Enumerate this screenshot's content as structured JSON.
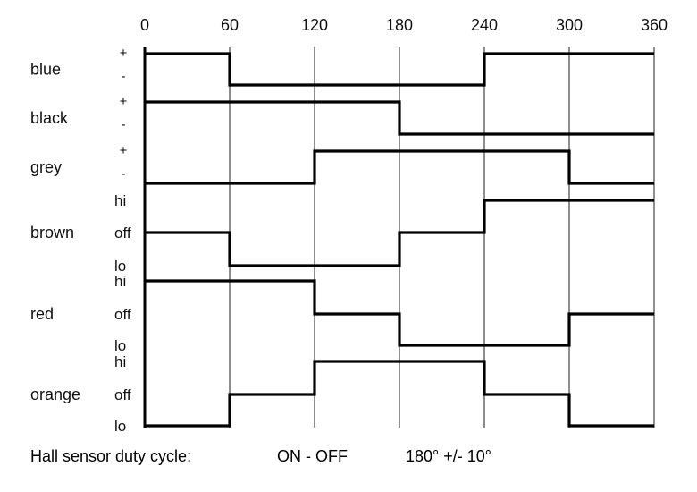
{
  "angles": [
    "0",
    "60",
    "120",
    "180",
    "240",
    "300",
    "360"
  ],
  "signals": [
    {
      "name": "blue",
      "kind": "binary",
      "levels": [
        "+",
        "-"
      ],
      "states": [
        "+",
        "-",
        "-",
        "-",
        "+",
        "+"
      ]
    },
    {
      "name": "black",
      "kind": "binary",
      "levels": [
        "+",
        "-"
      ],
      "states": [
        "+",
        "+",
        "+",
        "-",
        "-",
        "-"
      ]
    },
    {
      "name": "grey",
      "kind": "binary",
      "levels": [
        "+",
        "-"
      ],
      "states": [
        "-",
        "-",
        "+",
        "+",
        "+",
        "-"
      ]
    },
    {
      "name": "brown",
      "kind": "tri",
      "levels": [
        "hi",
        "off",
        "lo"
      ],
      "states": [
        "off",
        "lo",
        "lo",
        "off",
        "hi",
        "hi"
      ]
    },
    {
      "name": "red",
      "kind": "tri",
      "levels": [
        "hi",
        "off",
        "lo"
      ],
      "states": [
        "hi",
        "hi",
        "off",
        "lo",
        "lo",
        "off"
      ]
    },
    {
      "name": "orange",
      "kind": "tri",
      "levels": [
        "hi",
        "off",
        "lo"
      ],
      "states": [
        "lo",
        "off",
        "hi",
        "hi",
        "off",
        "lo"
      ]
    }
  ],
  "footer": {
    "label": "Hall sensor duty cycle:",
    "mode": "ON - OFF",
    "spec": "180° +/- 10°"
  }
}
